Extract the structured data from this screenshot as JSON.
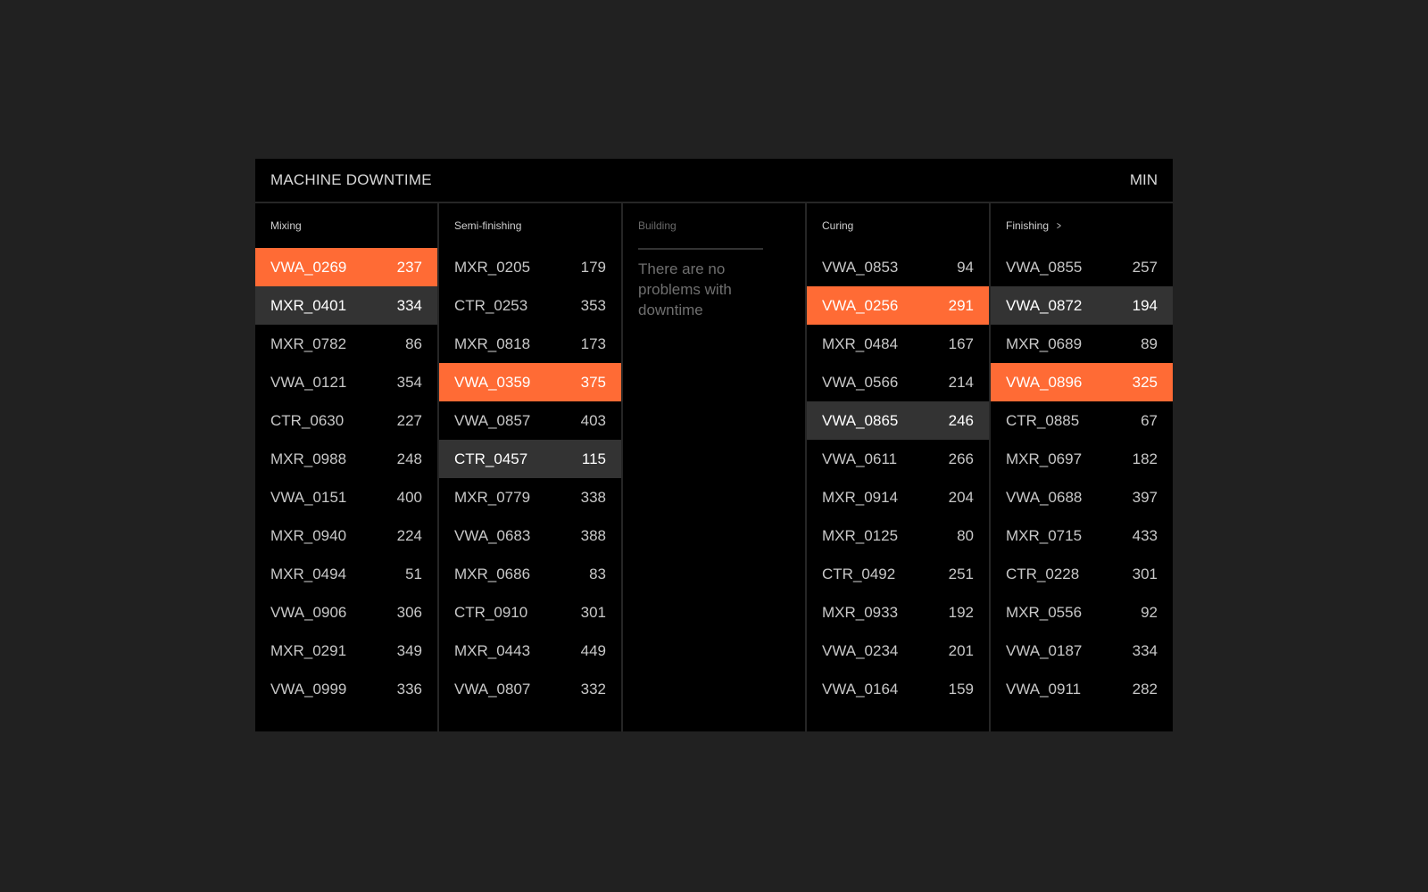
{
  "header": {
    "title": "MACHINE DOWNTIME",
    "unit": "MIN"
  },
  "colors": {
    "background": "#212121",
    "panel": "#000000",
    "alert": "#ff6b35",
    "warn": "#333333",
    "text": "#c8c8c8"
  },
  "columns": [
    {
      "label": "Mixing",
      "rows": [
        {
          "id": "VWA_0269",
          "value": "237",
          "state": "alert"
        },
        {
          "id": "MXR_0401",
          "value": "334",
          "state": "warn"
        },
        {
          "id": "MXR_0782",
          "value": "86",
          "state": "normal"
        },
        {
          "id": "VWA_0121",
          "value": "354",
          "state": "normal"
        },
        {
          "id": "CTR_0630",
          "value": "227",
          "state": "normal"
        },
        {
          "id": "MXR_0988",
          "value": "248",
          "state": "normal"
        },
        {
          "id": "VWA_0151",
          "value": "400",
          "state": "normal"
        },
        {
          "id": "MXR_0940",
          "value": "224",
          "state": "normal"
        },
        {
          "id": "MXR_0494",
          "value": "51",
          "state": "normal"
        },
        {
          "id": "VWA_0906",
          "value": "306",
          "state": "normal"
        },
        {
          "id": "MXR_0291",
          "value": "349",
          "state": "normal"
        },
        {
          "id": "VWA_0999",
          "value": "336",
          "state": "normal"
        }
      ]
    },
    {
      "label": "Semi-finishing",
      "rows": [
        {
          "id": "MXR_0205",
          "value": "179",
          "state": "normal"
        },
        {
          "id": "CTR_0253",
          "value": "353",
          "state": "normal"
        },
        {
          "id": "MXR_0818",
          "value": "173",
          "state": "normal"
        },
        {
          "id": "VWA_0359",
          "value": "375",
          "state": "alert"
        },
        {
          "id": "VWA_0857",
          "value": "403",
          "state": "normal"
        },
        {
          "id": "CTR_0457",
          "value": "115",
          "state": "warn"
        },
        {
          "id": "MXR_0779",
          "value": "338",
          "state": "normal"
        },
        {
          "id": "VWA_0683",
          "value": "388",
          "state": "normal"
        },
        {
          "id": "MXR_0686",
          "value": "83",
          "state": "normal"
        },
        {
          "id": "CTR_0910",
          "value": "301",
          "state": "normal"
        },
        {
          "id": "MXR_0443",
          "value": "449",
          "state": "normal"
        },
        {
          "id": "VWA_0807",
          "value": "332",
          "state": "normal"
        }
      ]
    },
    {
      "label": "Building",
      "empty_message": "There are no problems with downtime",
      "rows": []
    },
    {
      "label": "Curing",
      "rows": [
        {
          "id": "VWA_0853",
          "value": "94",
          "state": "normal"
        },
        {
          "id": "VWA_0256",
          "value": "291",
          "state": "alert"
        },
        {
          "id": "MXR_0484",
          "value": "167",
          "state": "normal"
        },
        {
          "id": "VWA_0566",
          "value": "214",
          "state": "normal"
        },
        {
          "id": "VWA_0865",
          "value": "246",
          "state": "warn"
        },
        {
          "id": "VWA_0611",
          "value": "266",
          "state": "normal"
        },
        {
          "id": "MXR_0914",
          "value": "204",
          "state": "normal"
        },
        {
          "id": "MXR_0125",
          "value": "80",
          "state": "normal"
        },
        {
          "id": "CTR_0492",
          "value": "251",
          "state": "normal"
        },
        {
          "id": "MXR_0933",
          "value": "192",
          "state": "normal"
        },
        {
          "id": "VWA_0234",
          "value": "201",
          "state": "normal"
        },
        {
          "id": "VWA_0164",
          "value": "159",
          "state": "normal"
        }
      ]
    },
    {
      "label": "Finishing",
      "has_chevron": true,
      "rows": [
        {
          "id": "VWA_0855",
          "value": "257",
          "state": "normal"
        },
        {
          "id": "VWA_0872",
          "value": "194",
          "state": "warn"
        },
        {
          "id": "MXR_0689",
          "value": "89",
          "state": "normal"
        },
        {
          "id": "VWA_0896",
          "value": "325",
          "state": "alert"
        },
        {
          "id": "CTR_0885",
          "value": "67",
          "state": "normal"
        },
        {
          "id": "MXR_0697",
          "value": "182",
          "state": "normal"
        },
        {
          "id": "VWA_0688",
          "value": "397",
          "state": "normal"
        },
        {
          "id": "MXR_0715",
          "value": "433",
          "state": "normal"
        },
        {
          "id": "CTR_0228",
          "value": "301",
          "state": "normal"
        },
        {
          "id": "MXR_0556",
          "value": "92",
          "state": "normal"
        },
        {
          "id": "VWA_0187",
          "value": "334",
          "state": "normal"
        },
        {
          "id": "VWA_0911",
          "value": "282",
          "state": "normal"
        }
      ]
    }
  ]
}
